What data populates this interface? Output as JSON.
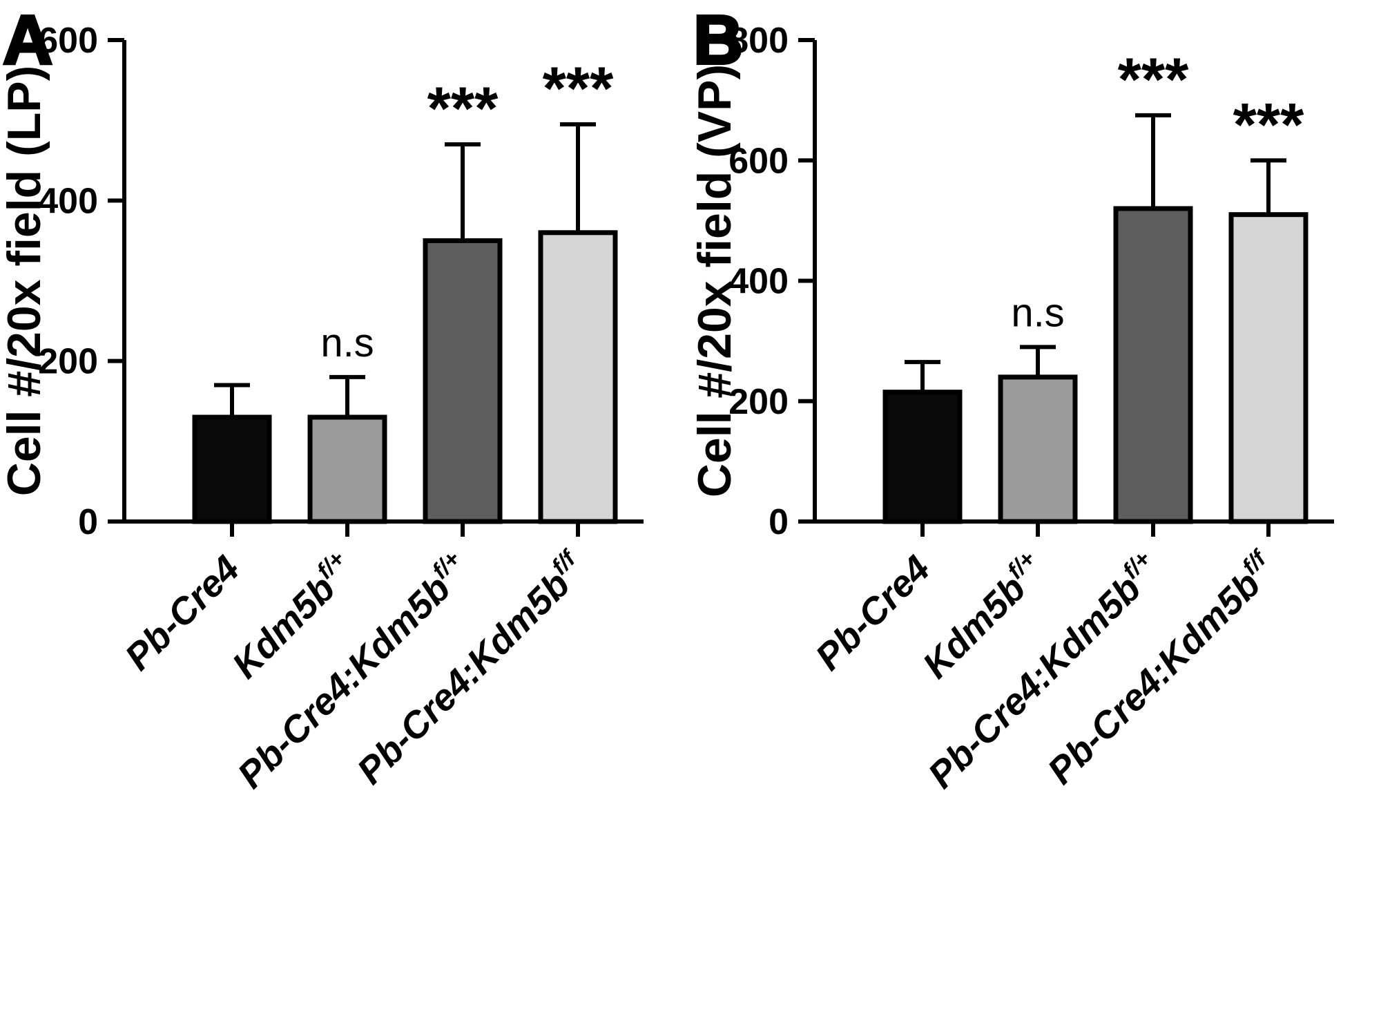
{
  "figure": {
    "background": "#ffffff",
    "bar_border_color": "#000000",
    "axis_color": "#000000"
  },
  "chart_data": [
    {
      "type": "bar",
      "panel_label": "A",
      "ylabel": "Cell #/20x field (LP)",
      "ylim": [
        0,
        600
      ],
      "yticks": [
        0,
        200,
        400,
        600
      ],
      "categories": [
        "Pb-Cre4",
        "Kdm5b^f/+",
        "Pb-Cre4:Kdm5b^f/+",
        "Pb-Cre4:Kdm5b^f/f"
      ],
      "categories_rich": [
        [
          {
            "t": "Pb-Cre4"
          }
        ],
        [
          {
            "t": "Kdm5b"
          },
          {
            "t": "f/+",
            "sup": true
          }
        ],
        [
          {
            "t": "Pb-Cre4:Kdm5b"
          },
          {
            "t": "f/+",
            "sup": true
          }
        ],
        [
          {
            "t": "Pb-Cre4:Kdm5b"
          },
          {
            "t": "f/f",
            "sup": true
          }
        ]
      ],
      "values": [
        130,
        130,
        350,
        360
      ],
      "errors_upper": [
        40,
        50,
        120,
        135
      ],
      "annotations": [
        "",
        "n.s",
        "***",
        "***"
      ],
      "bar_colors": [
        "#0a0a0a",
        "#9b9b9b",
        "#5d5d5d",
        "#d6d6d6"
      ],
      "grid": false,
      "legend": "none"
    },
    {
      "type": "bar",
      "panel_label": "B",
      "ylabel": "Cell #/20x field (VP)",
      "ylim": [
        0,
        800
      ],
      "yticks": [
        0,
        200,
        400,
        600,
        800
      ],
      "categories": [
        "Pb-Cre4",
        "Kdm5b^f/+",
        "Pb-Cre4:Kdm5b^f/+",
        "Pb-Cre4:Kdm5b^f/f"
      ],
      "categories_rich": [
        [
          {
            "t": "Pb-Cre4"
          }
        ],
        [
          {
            "t": "Kdm5b"
          },
          {
            "t": "f/+",
            "sup": true
          }
        ],
        [
          {
            "t": "Pb-Cre4:Kdm5b"
          },
          {
            "t": "f/+",
            "sup": true
          }
        ],
        [
          {
            "t": "Pb-Cre4:Kdm5b"
          },
          {
            "t": "f/f",
            "sup": true
          }
        ]
      ],
      "values": [
        215,
        240,
        520,
        510
      ],
      "errors_upper": [
        50,
        50,
        155,
        90
      ],
      "annotations": [
        "",
        "n.s",
        "***",
        "***"
      ],
      "bar_colors": [
        "#0a0a0a",
        "#9b9b9b",
        "#5d5d5d",
        "#d6d6d6"
      ],
      "grid": false,
      "legend": "none"
    }
  ]
}
